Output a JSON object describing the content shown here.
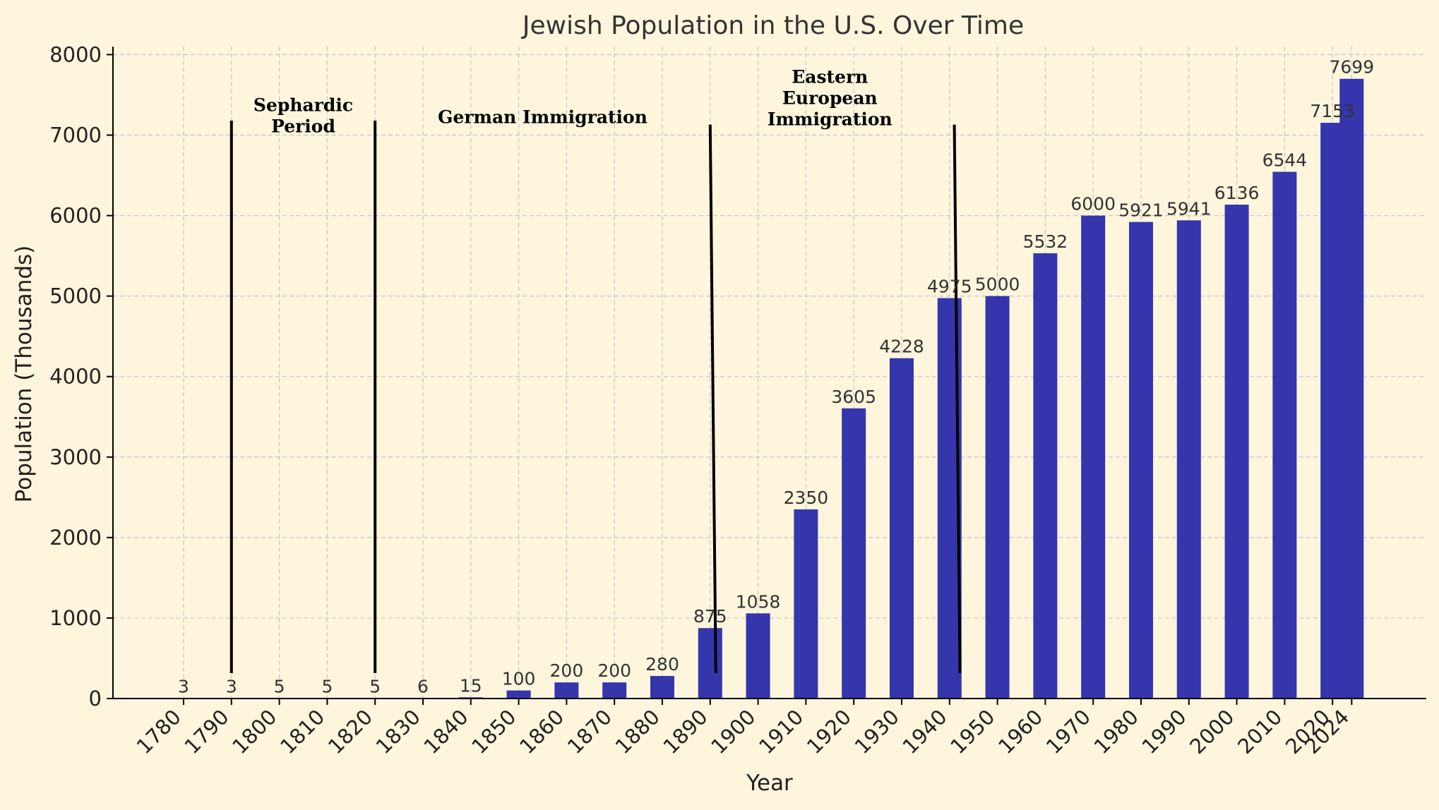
{
  "chart_data": {
    "type": "bar",
    "title": "Jewish Population in the U.S. Over Time",
    "xlabel": "Year",
    "ylabel": "Population (Thousands)",
    "ylim": [
      0,
      8100
    ],
    "yticks": [
      0,
      1000,
      2000,
      3000,
      4000,
      5000,
      6000,
      7000,
      8000
    ],
    "grid": true,
    "categories": [
      "1780",
      "1790",
      "1800",
      "1810",
      "1820",
      "1830",
      "1840",
      "1850",
      "1860",
      "1870",
      "1880",
      "1890",
      "1900",
      "1910",
      "1920",
      "1930",
      "1940",
      "1950",
      "1960",
      "1970",
      "1980",
      "1990",
      "2000",
      "2010",
      "2020",
      "2024"
    ],
    "values": [
      3,
      3,
      5,
      5,
      5,
      6,
      15,
      100,
      200,
      200,
      280,
      875,
      1058,
      2350,
      3605,
      4228,
      4975,
      5000,
      5532,
      6000,
      5921,
      5941,
      6136,
      6544,
      7153,
      7699
    ],
    "bar_color": "#3535ac",
    "background_color": "#fdf5dc",
    "period_dividers": [
      1790,
      1820,
      1890,
      1941
    ],
    "annotations": [
      {
        "lines": [
          "Sephardic",
          "Period"
        ],
        "x": 1805,
        "y": 7300
      },
      {
        "lines": [
          "German Immigration"
        ],
        "x": 1855,
        "y": 7150
      },
      {
        "lines": [
          "Eastern",
          "European",
          "Immigration"
        ],
        "x": 1915,
        "y": 7650
      }
    ]
  }
}
